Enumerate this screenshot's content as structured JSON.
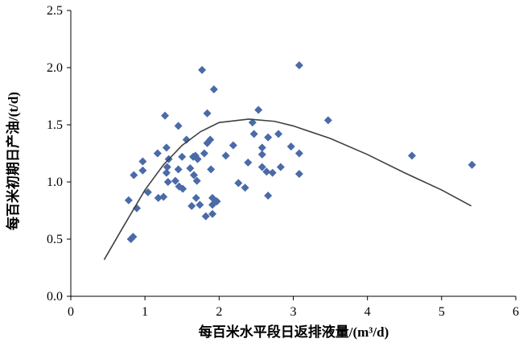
{
  "chart_data": {
    "type": "scatter",
    "x_label": "每百米水平段日返排液量/(m³/d)",
    "y_label": "每百米初期日产油/(t/d)",
    "xlim": [
      0,
      6
    ],
    "ylim": [
      0,
      2.5
    ],
    "xticks": [
      0,
      1,
      2,
      3,
      4,
      5,
      6
    ],
    "yticks": [
      {
        "value": 0,
        "label": "0.0"
      },
      {
        "value": 0.5,
        "label": "0.5"
      },
      {
        "value": 1,
        "label": "1.0"
      },
      {
        "value": 1.5,
        "label": "1.5"
      },
      {
        "value": 2,
        "label": "2.0"
      },
      {
        "value": 2.5,
        "label": "2.5"
      }
    ],
    "series": [
      {
        "mode": "markers",
        "marker": "diamond",
        "color": "#4a6aa8",
        "x": [
          0.78,
          0.81,
          0.84,
          0.85,
          0.89,
          0.97,
          0.97,
          1.04,
          1.17,
          1.18,
          1.25,
          1.27,
          1.29,
          1.29,
          1.31,
          1.32,
          1.3,
          1.41,
          1.45,
          1.45,
          1.46,
          1.5,
          1.51,
          1.56,
          1.61,
          1.63,
          1.65,
          1.66,
          1.68,
          1.69,
          1.7,
          1.71,
          1.74,
          1.77,
          1.8,
          1.82,
          1.84,
          1.84,
          1.88,
          1.89,
          1.91,
          1.91,
          1.91,
          1.93,
          1.97,
          2.09,
          2.19,
          2.26,
          2.35,
          2.39,
          2.45,
          2.47,
          2.53,
          2.58,
          2.58,
          2.58,
          2.64,
          2.66,
          2.66,
          2.72,
          2.8,
          2.83,
          2.97,
          3.08,
          3.08,
          3.08,
          3.47,
          4.6,
          5.41
        ],
        "values": [
          0.84,
          0.5,
          0.52,
          1.06,
          0.77,
          1.1,
          1.18,
          0.91,
          1.25,
          0.86,
          0.87,
          1.58,
          1.3,
          1.08,
          1.0,
          1.2,
          1.13,
          1.01,
          1.49,
          1.11,
          0.96,
          1.22,
          0.94,
          1.37,
          1.12,
          0.79,
          1.22,
          1.06,
          1.23,
          0.86,
          1.01,
          1.2,
          0.8,
          1.98,
          1.25,
          0.7,
          1.6,
          1.34,
          1.37,
          1.11,
          0.86,
          0.8,
          0.72,
          1.81,
          0.83,
          1.23,
          1.32,
          0.99,
          0.95,
          1.17,
          1.52,
          1.42,
          1.63,
          1.3,
          1.24,
          1.13,
          1.09,
          0.88,
          1.39,
          1.08,
          1.42,
          1.13,
          1.31,
          2.02,
          1.25,
          1.07,
          1.54,
          1.23,
          1.15
        ]
      },
      {
        "mode": "line",
        "color": "#404040",
        "x": [
          0.45,
          0.7,
          1.0,
          1.25,
          1.5,
          1.75,
          2.0,
          2.4,
          2.75,
          3.0,
          3.5,
          4.0,
          4.5,
          5.0,
          5.4
        ],
        "values": [
          0.32,
          0.6,
          0.93,
          1.15,
          1.32,
          1.44,
          1.52,
          1.55,
          1.53,
          1.49,
          1.38,
          1.24,
          1.08,
          0.93,
          0.79
        ]
      }
    ]
  }
}
